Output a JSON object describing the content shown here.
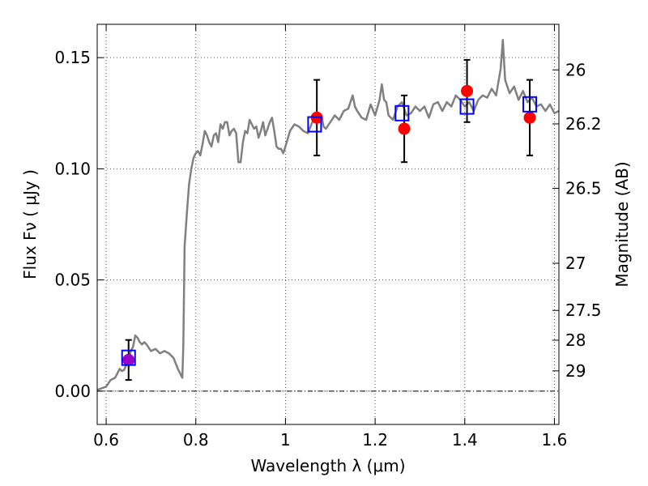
{
  "chart_data": {
    "type": "scatter",
    "xlabel": "Wavelength  λ (μm)",
    "ylabel": "Flux  Fν  ( μJy )",
    "ylabel_right": "Magnitude (AB)",
    "xlim": [
      0.58,
      1.61
    ],
    "ylim": [
      -0.015,
      0.165
    ],
    "grid": true,
    "x_ticks": [
      0.6,
      0.8,
      1.0,
      1.2,
      1.4,
      1.6
    ],
    "x_tick_labels": [
      "0.6",
      "0.8",
      "1",
      "1.2",
      "1.4",
      "1.6"
    ],
    "y_ticks": [
      0.0,
      0.05,
      0.1,
      0.15
    ],
    "y_tick_labels": [
      "0.00",
      "0.05",
      "0.10",
      "0.15"
    ],
    "right_ticks": [
      {
        "label": "26",
        "flux": 0.1445
      },
      {
        "label": "26.2",
        "flux": 0.1202
      },
      {
        "label": "26.5",
        "flux": 0.0912
      },
      {
        "label": "27",
        "flux": 0.0575
      },
      {
        "label": "27.5",
        "flux": 0.0363
      },
      {
        "label": "28",
        "flux": 0.0229
      },
      {
        "label": "29",
        "flux": 0.0091
      }
    ],
    "reference_line_y": 0.0,
    "colors": {
      "template": "#808080",
      "observed": "#ff0000",
      "observed_first": "#9900cc",
      "model": "#0000ff",
      "errorbar": "#000000",
      "grid": "#555555"
    },
    "series": [
      {
        "kind": "template-spectrum",
        "points": [
          [
            0.58,
            0.0005
          ],
          [
            0.6,
            0.002
          ],
          [
            0.61,
            0.005
          ],
          [
            0.62,
            0.006
          ],
          [
            0.63,
            0.01
          ],
          [
            0.635,
            0.009
          ],
          [
            0.64,
            0.0095
          ],
          [
            0.645,
            0.012
          ],
          [
            0.65,
            0.014
          ],
          [
            0.655,
            0.018
          ],
          [
            0.66,
            0.02
          ],
          [
            0.665,
            0.025
          ],
          [
            0.67,
            0.024
          ],
          [
            0.675,
            0.022
          ],
          [
            0.68,
            0.021
          ],
          [
            0.685,
            0.022
          ],
          [
            0.69,
            0.021
          ],
          [
            0.7,
            0.018
          ],
          [
            0.71,
            0.019
          ],
          [
            0.72,
            0.017
          ],
          [
            0.73,
            0.018
          ],
          [
            0.74,
            0.017
          ],
          [
            0.75,
            0.015
          ],
          [
            0.76,
            0.01
          ],
          [
            0.77,
            0.006
          ],
          [
            0.772,
            0.02
          ],
          [
            0.775,
            0.065
          ],
          [
            0.78,
            0.08
          ],
          [
            0.785,
            0.093
          ],
          [
            0.79,
            0.1
          ],
          [
            0.795,
            0.105
          ],
          [
            0.8,
            0.107
          ],
          [
            0.805,
            0.108
          ],
          [
            0.81,
            0.106
          ],
          [
            0.815,
            0.111
          ],
          [
            0.82,
            0.117
          ],
          [
            0.825,
            0.115
          ],
          [
            0.83,
            0.112
          ],
          [
            0.835,
            0.11
          ],
          [
            0.84,
            0.115
          ],
          [
            0.845,
            0.116
          ],
          [
            0.85,
            0.112
          ],
          [
            0.855,
            0.12
          ],
          [
            0.86,
            0.118
          ],
          [
            0.865,
            0.121
          ],
          [
            0.87,
            0.121
          ],
          [
            0.875,
            0.115
          ],
          [
            0.88,
            0.117
          ],
          [
            0.885,
            0.118
          ],
          [
            0.89,
            0.116
          ],
          [
            0.895,
            0.103
          ],
          [
            0.9,
            0.103
          ],
          [
            0.905,
            0.112
          ],
          [
            0.91,
            0.117
          ],
          [
            0.915,
            0.116
          ],
          [
            0.92,
            0.122
          ],
          [
            0.925,
            0.12
          ],
          [
            0.93,
            0.118
          ],
          [
            0.935,
            0.119
          ],
          [
            0.94,
            0.114
          ],
          [
            0.945,
            0.117
          ],
          [
            0.95,
            0.121
          ],
          [
            0.955,
            0.115
          ],
          [
            0.96,
            0.118
          ],
          [
            0.965,
            0.121
          ],
          [
            0.97,
            0.123
          ],
          [
            0.975,
            0.117
          ],
          [
            0.98,
            0.11
          ],
          [
            0.985,
            0.109
          ],
          [
            0.99,
            0.109
          ],
          [
            0.995,
            0.107
          ],
          [
            1.0,
            0.11
          ],
          [
            1.01,
            0.117
          ],
          [
            1.02,
            0.12
          ],
          [
            1.03,
            0.119
          ],
          [
            1.04,
            0.117
          ],
          [
            1.05,
            0.116
          ],
          [
            1.06,
            0.121
          ],
          [
            1.07,
            0.122
          ],
          [
            1.08,
            0.124
          ],
          [
            1.085,
            0.119
          ],
          [
            1.09,
            0.118
          ],
          [
            1.1,
            0.121
          ],
          [
            1.11,
            0.124
          ],
          [
            1.12,
            0.122
          ],
          [
            1.13,
            0.126
          ],
          [
            1.14,
            0.127
          ],
          [
            1.15,
            0.133
          ],
          [
            1.155,
            0.128
          ],
          [
            1.16,
            0.126
          ],
          [
            1.17,
            0.123
          ],
          [
            1.18,
            0.122
          ],
          [
            1.19,
            0.129
          ],
          [
            1.2,
            0.124
          ],
          [
            1.21,
            0.131
          ],
          [
            1.215,
            0.138
          ],
          [
            1.22,
            0.131
          ],
          [
            1.225,
            0.13
          ],
          [
            1.23,
            0.124
          ],
          [
            1.24,
            0.122
          ],
          [
            1.25,
            0.128
          ],
          [
            1.26,
            0.13
          ],
          [
            1.27,
            0.124
          ],
          [
            1.28,
            0.125
          ],
          [
            1.29,
            0.128
          ],
          [
            1.3,
            0.126
          ],
          [
            1.31,
            0.128
          ],
          [
            1.32,
            0.123
          ],
          [
            1.33,
            0.129
          ],
          [
            1.34,
            0.13
          ],
          [
            1.35,
            0.126
          ],
          [
            1.36,
            0.13
          ],
          [
            1.37,
            0.128
          ],
          [
            1.38,
            0.133
          ],
          [
            1.39,
            0.131
          ],
          [
            1.4,
            0.128
          ],
          [
            1.41,
            0.13
          ],
          [
            1.42,
            0.126
          ],
          [
            1.43,
            0.131
          ],
          [
            1.44,
            0.133
          ],
          [
            1.45,
            0.132
          ],
          [
            1.46,
            0.136
          ],
          [
            1.47,
            0.133
          ],
          [
            1.48,
            0.145
          ],
          [
            1.485,
            0.158
          ],
          [
            1.49,
            0.14
          ],
          [
            1.5,
            0.134
          ],
          [
            1.51,
            0.137
          ],
          [
            1.52,
            0.131
          ],
          [
            1.53,
            0.135
          ],
          [
            1.54,
            0.13
          ],
          [
            1.55,
            0.132
          ],
          [
            1.56,
            0.128
          ],
          [
            1.57,
            0.129
          ],
          [
            1.58,
            0.126
          ],
          [
            1.59,
            0.129
          ],
          [
            1.6,
            0.125
          ],
          [
            1.61,
            0.126
          ]
        ]
      },
      {
        "kind": "model-photometry",
        "marker": "open-square",
        "points": [
          [
            0.65,
            0.015
          ],
          [
            1.065,
            0.12
          ],
          [
            1.26,
            0.125
          ],
          [
            1.405,
            0.128
          ],
          [
            1.545,
            0.129
          ]
        ]
      },
      {
        "kind": "observed-photometry",
        "marker": "filled-circle",
        "points": [
          {
            "x": 0.65,
            "y": 0.014,
            "err": 0.009
          },
          {
            "x": 1.07,
            "y": 0.123,
            "err": 0.017
          },
          {
            "x": 1.265,
            "y": 0.118,
            "err": 0.015
          },
          {
            "x": 1.405,
            "y": 0.135,
            "err": 0.014
          },
          {
            "x": 1.545,
            "y": 0.123,
            "err": 0.017
          }
        ]
      }
    ]
  }
}
